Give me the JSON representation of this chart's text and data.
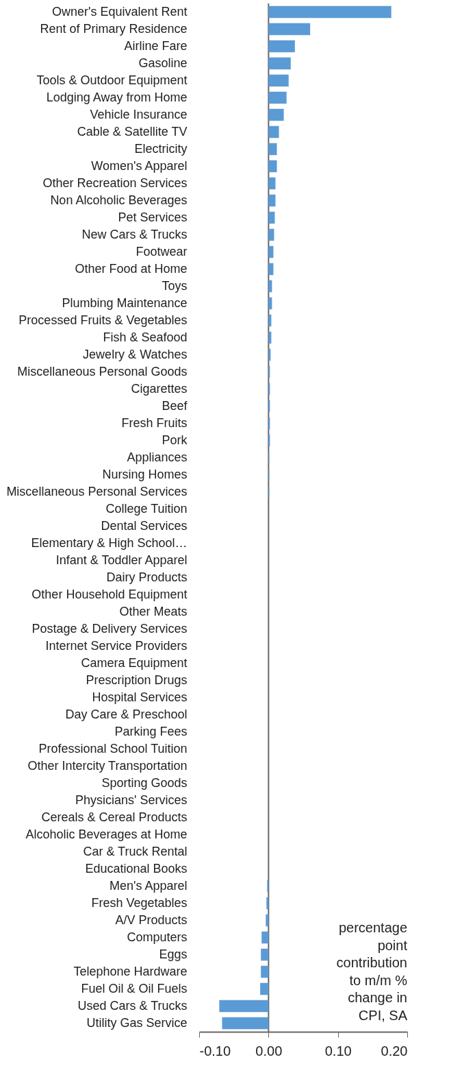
{
  "chart_data": {
    "type": "bar",
    "orientation": "horizontal",
    "categories": [
      "Owner's Equivalent Rent",
      "Rent of Primary Residence",
      "Airline Fare",
      "Gasoline",
      "Tools & Outdoor Equipment",
      "Lodging Away from Home",
      "Vehicle Insurance",
      "Cable & Satellite TV",
      "Electricity",
      "Women's Apparel",
      "Other Recreation Services",
      "Non Alcoholic Beverages",
      "Pet Services",
      "New Cars & Trucks",
      "Footwear",
      "Other Food at Home",
      "Toys",
      "Plumbing Maintenance",
      "Processed Fruits & Vegetables",
      "Fish & Seafood",
      "Jewelry & Watches",
      "Miscellaneous Personal Goods",
      "Cigarettes",
      "Beef",
      "Fresh Fruits",
      "Pork",
      "Appliances",
      "Nursing Homes",
      "Miscellaneous Personal Services",
      "College Tuition",
      "Dental Services",
      "Elementary & High School…",
      "Infant & Toddler Apparel",
      "Dairy Products",
      "Other Household Equipment",
      "Other Meats",
      "Postage & Delivery Services",
      "Internet Service Providers",
      "Camera Equipment",
      "Prescription Drugs",
      "Hospital Services",
      "Day Care & Preschool",
      "Parking Fees",
      "Professional School Tuition",
      "Other Intercity Transportation",
      "Sporting Goods",
      "Physicians' Services",
      "Cereals & Cereal Products",
      "Alcoholic Beverages at Home",
      "Car & Truck Rental",
      "Educational Books",
      "Men's Apparel",
      "Fresh Vegetables",
      "A/V Products",
      "Computers",
      "Eggs",
      "Telephone Hardware",
      "Fuel Oil & Oil Fuels",
      "Used Cars & Trucks",
      "Utility Gas Service"
    ],
    "values": [
      0.177,
      0.06,
      0.038,
      0.032,
      0.029,
      0.026,
      0.022,
      0.015,
      0.012,
      0.012,
      0.01,
      0.01,
      0.009,
      0.008,
      0.007,
      0.007,
      0.005,
      0.005,
      0.004,
      0.004,
      0.003,
      0.002,
      0.002,
      0.002,
      0.002,
      0.002,
      0.001,
      0.001,
      0.001,
      0,
      0,
      0,
      0,
      0,
      0,
      0,
      0,
      0,
      0,
      0,
      0,
      0,
      0,
      0,
      0,
      0,
      0,
      0,
      0,
      0,
      0,
      -0.002,
      -0.003,
      -0.004,
      -0.01,
      -0.011,
      -0.011,
      -0.012,
      -0.071,
      -0.067
    ],
    "color": "#5b9bd5",
    "xlim": [
      -0.1,
      0.2
    ],
    "xticks": [
      {
        "value": -0.1,
        "label": "-0.10"
      },
      {
        "value": 0,
        "label": "0.00"
      },
      {
        "value": 0.1,
        "label": "0.10"
      },
      {
        "value": 0.2,
        "label": "0.20"
      }
    ],
    "annotations": [
      "percentage\npoint\ncontribution\nto m/m %\nchange in\nCPI, SA"
    ]
  }
}
